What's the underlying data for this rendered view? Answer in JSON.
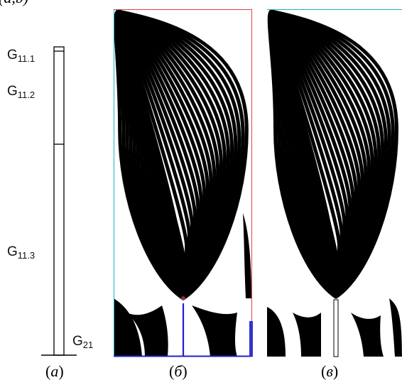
{
  "figure": {
    "top_cut_text": "(a,b)",
    "panel_a": {
      "labels": [
        {
          "base": "G",
          "sub": "11.1"
        },
        {
          "base": "G",
          "sub": "11.2"
        },
        {
          "base": "G",
          "sub": "11.3"
        },
        {
          "base": "G",
          "sub": "21"
        }
      ],
      "caption": {
        "open": "(",
        "letter": "a",
        "close": ")"
      }
    },
    "panel_b": {
      "caption": {
        "open": "(",
        "letter": "б",
        "close": ")"
      },
      "fringe_color": "#000000",
      "border_colors": {
        "right_top": "#e04050",
        "left": "#20b0c0",
        "bottom": "#2020d0",
        "crack": "#2020d0",
        "right_bottom": "#3333cc"
      }
    },
    "panel_c": {
      "caption": {
        "open": "(",
        "letter": "в",
        "close": ")"
      },
      "fringe_color": "#000000",
      "border_colors": {
        "top": "#20b0c0"
      }
    }
  }
}
